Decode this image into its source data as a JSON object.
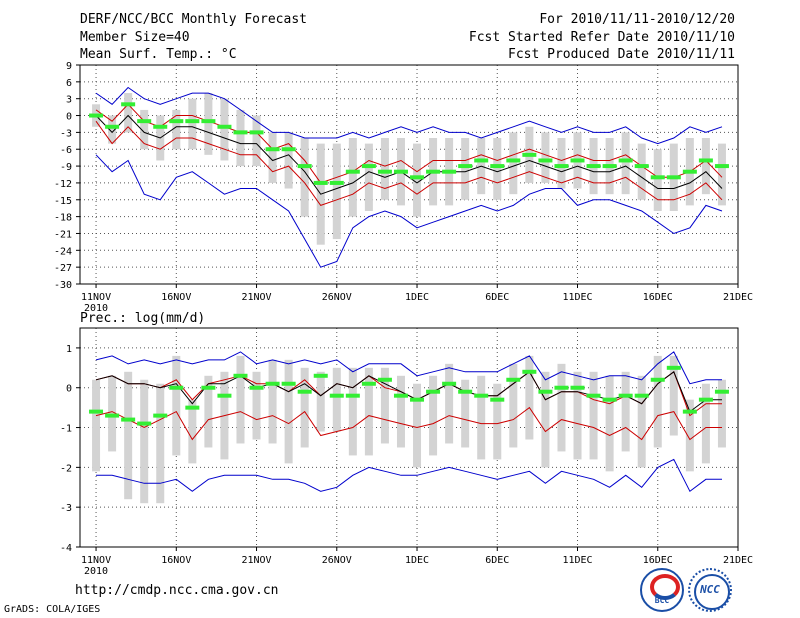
{
  "header": {
    "title": "DERF/NCC/BCC Monthly Forecast",
    "member_size": "Member Size=40",
    "variable": "Mean Surf. Temp.: °C",
    "period": "For 2010/11/11-2010/12/20",
    "fcst_started": "Fcst Started Refer Date 2010/11/10",
    "fcst_produced": "Fcst Produced Date 2010/11/11"
  },
  "footer": {
    "url": "http://cmdp.ncc.cma.gov.cn",
    "credit": "GrADS: COLA/IGES",
    "logo_bcc": "BCC",
    "logo_ncc": "NCC"
  },
  "colors": {
    "black": "#000000",
    "red": "#cc0000",
    "blue": "#0000cc",
    "green": "#33ee33",
    "bar": "#d3d3d3"
  },
  "chart_data": [
    {
      "type": "line",
      "title": "Mean Surf. Temp.: °C",
      "x_labels": [
        "11NOV",
        "16NOV",
        "21NOV",
        "26NOV",
        "1DEC",
        "6DEC",
        "11DEC",
        "16DEC",
        "21DEC"
      ],
      "x_label_positions": [
        0,
        5,
        10,
        15,
        20,
        25,
        30,
        35,
        40
      ],
      "year_label": "2010",
      "xlim": [
        -1,
        40
      ],
      "ylim": [
        -30,
        9
      ],
      "yticks": [
        9,
        6,
        3,
        0,
        -3,
        -6,
        -9,
        -12,
        -15,
        -18,
        -21,
        -24,
        -27,
        -30
      ],
      "grid": true,
      "series": [
        {
          "name": "ensemble mean",
          "color": "black",
          "values": [
            0,
            -3,
            0,
            -3,
            -4,
            -2,
            -2,
            -3,
            -4,
            -5,
            -5,
            -8,
            -7,
            -10,
            -14,
            -13,
            -12,
            -10,
            -11,
            -10,
            -12,
            -10,
            -10,
            -10,
            -9,
            -10,
            -9,
            -8,
            -9,
            -10,
            -9,
            -10,
            -10,
            -9,
            -11,
            -13,
            -13,
            -12,
            -10,
            -13
          ]
        },
        {
          "name": "upper spread",
          "color": "red",
          "values": [
            1,
            -1,
            2,
            -1,
            -2,
            0,
            0,
            -1,
            -2,
            -3,
            -3,
            -6,
            -5,
            -8,
            -12,
            -11,
            -10,
            -8,
            -9,
            -8,
            -10,
            -8,
            -8,
            -8,
            -7,
            -8,
            -7,
            -6,
            -7,
            -8,
            -7,
            -8,
            -8,
            -7,
            -9,
            -11,
            -11,
            -10,
            -8,
            -11
          ]
        },
        {
          "name": "lower spread",
          "color": "red",
          "values": [
            -1,
            -5,
            -2,
            -5,
            -6,
            -4,
            -4,
            -5,
            -6,
            -7,
            -7,
            -10,
            -9,
            -12,
            -16,
            -15,
            -14,
            -12,
            -13,
            -12,
            -14,
            -12,
            -12,
            -12,
            -11,
            -12,
            -11,
            -10,
            -11,
            -12,
            -11,
            -12,
            -12,
            -11,
            -13,
            -15,
            -15,
            -14,
            -12,
            -15
          ]
        },
        {
          "name": "maximum",
          "color": "blue",
          "values": [
            4,
            2,
            5,
            3,
            2,
            3,
            4,
            4,
            3,
            1,
            -1,
            -3,
            -3,
            -4,
            -4,
            -4,
            -3,
            -4,
            -3,
            -2,
            -3,
            -2,
            -3,
            -3,
            -4,
            -3,
            -2,
            -1,
            -2,
            -3,
            -2,
            -3,
            -3,
            -2,
            -4,
            -5,
            -4,
            -2,
            -3,
            -2
          ]
        },
        {
          "name": "minimum",
          "color": "blue",
          "values": [
            -7,
            -10,
            -8,
            -14,
            -15,
            -11,
            -10,
            -12,
            -14,
            -13,
            -13,
            -15,
            -17,
            -22,
            -27,
            -26,
            -20,
            -18,
            -17,
            -18,
            -20,
            -19,
            -18,
            -17,
            -16,
            -17,
            -16,
            -14,
            -13,
            -13,
            -16,
            -15,
            -15,
            -16,
            -17,
            -19,
            -21,
            -20,
            -16,
            -17
          ]
        }
      ],
      "bars": {
        "name": "member range",
        "color": "light gray",
        "low": [
          -2,
          -5,
          -3,
          -6,
          -8,
          -6,
          -6,
          -7,
          -8,
          -9,
          -9,
          -12,
          -13,
          -18,
          -23,
          -22,
          -18,
          -17,
          -15,
          -16,
          -18,
          -16,
          -16,
          -15,
          -14,
          -15,
          -14,
          -12,
          -12,
          -13,
          -13,
          -14,
          -14,
          -14,
          -15,
          -17,
          -17,
          -16,
          -14,
          -16
        ],
        "high": [
          2,
          0,
          4,
          1,
          0,
          1,
          3,
          4,
          3,
          1,
          0,
          -3,
          -3,
          -4,
          -5,
          -5,
          -4,
          -5,
          -4,
          -4,
          -5,
          -4,
          -4,
          -4,
          -4,
          -4,
          -3,
          -2,
          -3,
          -4,
          -3,
          -4,
          -4,
          -3,
          -5,
          -6,
          -5,
          -4,
          -4,
          -5
        ]
      },
      "observed": {
        "name": "observation",
        "color": "green",
        "values": [
          0,
          -2,
          2,
          -1,
          -2,
          -1,
          -1,
          -1,
          -2,
          -3,
          -3,
          -6,
          -6,
          -9,
          -12,
          -12,
          -10,
          -9,
          -10,
          -10,
          -11,
          -10,
          -10,
          -9,
          -8,
          -9,
          -8,
          -7,
          -8,
          -9,
          -8,
          -9,
          -9,
          -8,
          -9,
          -11,
          -11,
          -10,
          -8,
          -9
        ]
      }
    },
    {
      "type": "line",
      "title": "Prec.: log(mm/d)",
      "x_labels": [
        "11NOV",
        "16NOV",
        "21NOV",
        "26NOV",
        "1DEC",
        "6DEC",
        "11DEC",
        "16DEC",
        "21DEC"
      ],
      "x_label_positions": [
        0,
        5,
        10,
        15,
        20,
        25,
        30,
        35,
        40
      ],
      "year_label": "2010",
      "xlim": [
        -1,
        40
      ],
      "ylim": [
        -4,
        1.5
      ],
      "yticks": [
        1,
        0,
        -1,
        -2,
        -3,
        -4
      ],
      "grid": true,
      "series": [
        {
          "name": "ensemble mean",
          "color": "black",
          "values": [
            0.2,
            0.3,
            0.1,
            0.1,
            0,
            0.1,
            -0.4,
            0.1,
            0.1,
            0.3,
            0,
            0.1,
            -0.1,
            0.1,
            -0.2,
            0.1,
            0,
            0.3,
            0.1,
            -0.1,
            -0.3,
            -0.1,
            0.1,
            -0.1,
            -0.2,
            -0.2,
            0.1,
            0.4,
            -0.3,
            -0.1,
            -0.1,
            -0.2,
            -0.3,
            -0.2,
            -0.4,
            0.1,
            0.4,
            -0.6,
            -0.3,
            -0.3
          ]
        },
        {
          "name": "upper spread",
          "color": "red",
          "values": [
            0.2,
            0.3,
            0.1,
            0.1,
            0,
            0.2,
            -0.3,
            0.1,
            0.2,
            0.3,
            0.1,
            0.1,
            -0.1,
            0.2,
            -0.2,
            0.1,
            0,
            0.3,
            0,
            -0.1,
            -0.3,
            -0.1,
            0.1,
            -0.1,
            -0.2,
            -0.2,
            0.1,
            0.4,
            -0.3,
            -0.1,
            -0.1,
            -0.3,
            -0.4,
            -0.2,
            -0.4,
            0.1,
            0.4,
            -0.7,
            -0.4,
            -0.4
          ]
        },
        {
          "name": "lower spread",
          "color": "red",
          "values": [
            -0.7,
            -0.6,
            -0.8,
            -1,
            -0.8,
            -0.6,
            -1.3,
            -0.8,
            -0.7,
            -0.6,
            -0.8,
            -0.7,
            -0.9,
            -0.6,
            -1.2,
            -1.1,
            -1,
            -0.7,
            -0.8,
            -0.9,
            -1,
            -0.9,
            -0.7,
            -0.8,
            -0.9,
            -0.9,
            -0.8,
            -0.5,
            -1.1,
            -0.8,
            -0.9,
            -1,
            -1.2,
            -1,
            -1.3,
            -0.7,
            -0.6,
            -1.3,
            -1,
            -1
          ]
        },
        {
          "name": "maximum",
          "color": "blue",
          "values": [
            0.7,
            0.8,
            0.6,
            0.7,
            0.6,
            0.7,
            0.6,
            0.7,
            0.7,
            0.9,
            0.6,
            0.7,
            0.6,
            0.7,
            0.6,
            0.7,
            0.4,
            0.6,
            0.6,
            0.6,
            0.3,
            0.4,
            0.5,
            0.4,
            0.4,
            0.4,
            0.6,
            0.8,
            0.2,
            0.4,
            0.3,
            0.2,
            0.3,
            0.3,
            0.2,
            0.6,
            0.9,
            0.1,
            0.2,
            0.2
          ]
        },
        {
          "name": "minimum",
          "color": "blue",
          "values": [
            -2.2,
            -2.2,
            -2.3,
            -2.4,
            -2.4,
            -2.3,
            -2.6,
            -2.3,
            -2.2,
            -2.2,
            -2.2,
            -2.3,
            -2.3,
            -2.4,
            -2.6,
            -2.5,
            -2.2,
            -2,
            -2.1,
            -2.2,
            -2.2,
            -2.1,
            -2,
            -2.1,
            -2.2,
            -2.3,
            -2.2,
            -2.1,
            -2.4,
            -2.1,
            -2.2,
            -2.3,
            -2.5,
            -2.2,
            -2.5,
            -2,
            -1.8,
            -2.6,
            -2.3,
            -2.3
          ]
        }
      ],
      "bars": {
        "name": "member range",
        "color": "light gray",
        "low": [
          -2.1,
          -1.6,
          -2.8,
          -2.9,
          -2.9,
          -1.7,
          -1.9,
          -1.5,
          -1.8,
          -1.4,
          -1.3,
          -1.4,
          -1.9,
          -1.5,
          -1.1,
          -1.1,
          -1.7,
          -1.7,
          -1.4,
          -1.5,
          -2,
          -1.7,
          -1.4,
          -1.5,
          -1.8,
          -1.8,
          -1.5,
          -1.3,
          -2,
          -1.6,
          -1.8,
          -1.8,
          -2.1,
          -1.6,
          -2,
          -1.5,
          -1.2,
          -2.1,
          -1.9,
          -1.5
        ],
        "high": [
          0.2,
          0.3,
          0.4,
          0.2,
          0.1,
          0.8,
          -0.3,
          0.3,
          0.4,
          0.8,
          0.4,
          0.7,
          0.7,
          0.5,
          0.4,
          0.5,
          0.5,
          0.5,
          0.5,
          0.3,
          0.1,
          0.3,
          0.6,
          0.2,
          0.3,
          0.1,
          0.6,
          0.8,
          0.4,
          0.6,
          0.4,
          0.4,
          0.3,
          0.4,
          0.3,
          0.8,
          0.8,
          -0.3,
          0.1,
          0.2
        ]
      },
      "observed": {
        "name": "observation",
        "color": "green",
        "values": [
          -0.6,
          -0.7,
          -0.8,
          -0.9,
          -0.7,
          0,
          -0.5,
          0,
          -0.2,
          0.3,
          0,
          0.1,
          0.1,
          -0.1,
          0.3,
          -0.2,
          -0.2,
          0.1,
          0.2,
          -0.2,
          -0.3,
          -0.1,
          0.1,
          -0.1,
          -0.2,
          -0.3,
          0.2,
          0.4,
          -0.1,
          0,
          0,
          -0.2,
          -0.3,
          -0.2,
          -0.2,
          0.2,
          0.5,
          -0.6,
          -0.3,
          -0.1
        ]
      }
    }
  ]
}
